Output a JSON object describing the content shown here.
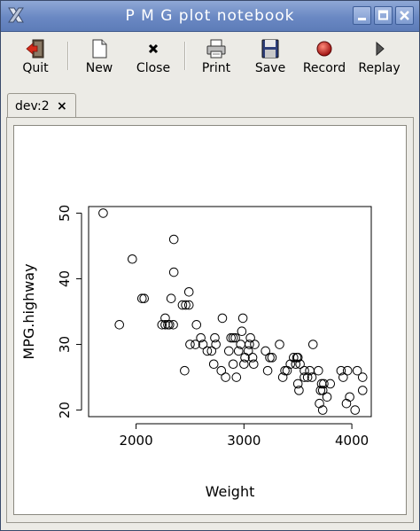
{
  "window": {
    "title": "P M G plot notebook"
  },
  "toolbar": {
    "quit": "Quit",
    "new": "New",
    "close": "Close",
    "print": "Print",
    "save": "Save",
    "record": "Record",
    "replay": "Replay"
  },
  "tabs": [
    {
      "label": "dev:2",
      "close_glyph": "×"
    }
  ],
  "colors": {
    "titlebar": "#6a88c3",
    "record_icon": "#cc1f1f"
  },
  "chart_data": {
    "type": "scatter",
    "title": "",
    "xlabel": "Weight",
    "ylabel": "MPG.highway",
    "xlim": [
      1560,
      4180
    ],
    "ylim": [
      19,
      51
    ],
    "xticks": [
      2000,
      3000,
      4000
    ],
    "yticks": [
      20,
      30,
      40,
      50
    ],
    "grid": false,
    "points": [
      [
        1695,
        50
      ],
      [
        1965,
        43
      ],
      [
        1845,
        33
      ],
      [
        2055,
        37
      ],
      [
        2075,
        37
      ],
      [
        2350,
        46
      ],
      [
        2350,
        41
      ],
      [
        2325,
        37
      ],
      [
        2270,
        34
      ],
      [
        2270,
        33
      ],
      [
        2240,
        33
      ],
      [
        2295,
        33
      ],
      [
        2310,
        33
      ],
      [
        2345,
        33
      ],
      [
        2430,
        36
      ],
      [
        2460,
        36
      ],
      [
        2490,
        36
      ],
      [
        2490,
        38
      ],
      [
        2450,
        26
      ],
      [
        2500,
        30
      ],
      [
        2550,
        30
      ],
      [
        2560,
        33
      ],
      [
        2600,
        31
      ],
      [
        2620,
        30
      ],
      [
        2660,
        29
      ],
      [
        2700,
        29
      ],
      [
        2730,
        31
      ],
      [
        2740,
        30
      ],
      [
        2720,
        27
      ],
      [
        2790,
        26
      ],
      [
        2800,
        34
      ],
      [
        2830,
        25
      ],
      [
        2860,
        29
      ],
      [
        2880,
        31
      ],
      [
        2900,
        27
      ],
      [
        2900,
        31
      ],
      [
        2920,
        31
      ],
      [
        2930,
        25
      ],
      [
        2950,
        29
      ],
      [
        2970,
        30
      ],
      [
        2980,
        32
      ],
      [
        2990,
        34
      ],
      [
        3000,
        27
      ],
      [
        3010,
        28
      ],
      [
        3040,
        29
      ],
      [
        3050,
        30
      ],
      [
        3060,
        31
      ],
      [
        3080,
        28
      ],
      [
        3090,
        27
      ],
      [
        3100,
        30
      ],
      [
        3200,
        29
      ],
      [
        3220,
        26
      ],
      [
        3240,
        28
      ],
      [
        3260,
        28
      ],
      [
        3330,
        30
      ],
      [
        3360,
        25
      ],
      [
        3380,
        26
      ],
      [
        3400,
        26
      ],
      [
        3430,
        27
      ],
      [
        3460,
        28
      ],
      [
        3480,
        27
      ],
      [
        3490,
        28
      ],
      [
        3500,
        28
      ],
      [
        3500,
        24
      ],
      [
        3510,
        23
      ],
      [
        3520,
        27
      ],
      [
        3560,
        26
      ],
      [
        3560,
        25
      ],
      [
        3590,
        25
      ],
      [
        3610,
        26
      ],
      [
        3630,
        25
      ],
      [
        3640,
        30
      ],
      [
        3690,
        26
      ],
      [
        3700,
        21
      ],
      [
        3710,
        23
      ],
      [
        3720,
        24
      ],
      [
        3730,
        20
      ],
      [
        3730,
        23
      ],
      [
        3740,
        24
      ],
      [
        3770,
        22
      ],
      [
        3800,
        24
      ],
      [
        3900,
        26
      ],
      [
        3920,
        25
      ],
      [
        3950,
        21
      ],
      [
        3960,
        26
      ],
      [
        3980,
        22
      ],
      [
        4030,
        20
      ],
      [
        4050,
        26
      ],
      [
        4100,
        23
      ],
      [
        4100,
        25
      ]
    ]
  }
}
